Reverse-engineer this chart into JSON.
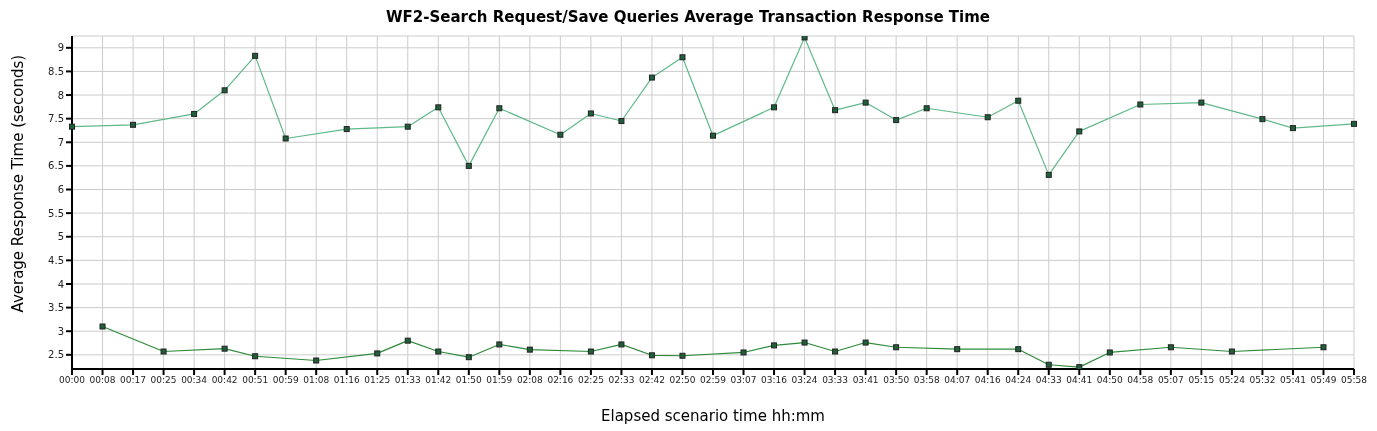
{
  "chart_data": {
    "type": "line",
    "title": "WF2-Search Request/Save Queries Average Transaction Response Time",
    "xlabel": "Elapsed scenario time hh:mm",
    "ylabel": "Average Response Time (seconds)",
    "categories": [
      "00:00",
      "00:08",
      "00:17",
      "00:25",
      "00:34",
      "00:42",
      "00:51",
      "00:59",
      "01:08",
      "01:16",
      "01:25",
      "01:33",
      "01:42",
      "01:50",
      "01:59",
      "02:08",
      "02:16",
      "02:25",
      "02:33",
      "02:42",
      "02:50",
      "02:59",
      "03:07",
      "03:16",
      "03:24",
      "03:33",
      "03:41",
      "03:50",
      "03:58",
      "04:07",
      "04:16",
      "04:24",
      "04:33",
      "04:41",
      "04:50",
      "04:58",
      "05:07",
      "05:15",
      "05:24",
      "05:32",
      "05:41",
      "05:49",
      "05:58"
    ],
    "series": [
      {
        "color": "#5fb98a",
        "values": [
          7.33,
          null,
          7.37,
          null,
          7.6,
          8.1,
          8.83,
          7.08,
          null,
          7.28,
          null,
          7.33,
          7.74,
          6.5,
          7.72,
          null,
          7.16,
          7.61,
          7.45,
          8.37,
          8.8,
          7.14,
          null,
          7.74,
          9.22,
          7.68,
          7.84,
          7.47,
          7.72,
          null,
          7.53,
          7.88,
          6.31,
          7.23,
          null,
          7.8,
          null,
          7.84,
          null,
          7.49,
          7.3,
          null,
          7.39
        ]
      },
      {
        "color": "#2e8b3a",
        "values": [
          null,
          3.1,
          null,
          2.57,
          null,
          2.63,
          2.47,
          null,
          2.38,
          null,
          2.53,
          2.8,
          2.57,
          2.45,
          2.72,
          2.61,
          null,
          2.57,
          2.72,
          2.49,
          2.48,
          null,
          2.55,
          2.7,
          2.76,
          2.57,
          2.76,
          2.66,
          null,
          2.62,
          null,
          2.62,
          2.29,
          2.24,
          2.55,
          null,
          2.66,
          null,
          2.57,
          null,
          null,
          2.66,
          null
        ]
      }
    ],
    "ylim": [
      2.2,
      9.25
    ],
    "yticks": [
      {
        "value": 2.5,
        "label": "2.5"
      },
      {
        "value": 3,
        "label": "3"
      },
      {
        "value": 3.5,
        "label": "3.5"
      },
      {
        "value": 4,
        "label": "4"
      },
      {
        "value": 4.5,
        "label": "4.5"
      },
      {
        "value": 5,
        "label": "5"
      },
      {
        "value": 5.5,
        "label": "5.5"
      },
      {
        "value": 6,
        "label": "6"
      },
      {
        "value": 6.5,
        "label": "6.5"
      },
      {
        "value": 7,
        "label": "7"
      },
      {
        "value": 7.5,
        "label": "7.5"
      },
      {
        "value": 8,
        "label": "8"
      },
      {
        "value": 8.5,
        "label": "8.5"
      },
      {
        "value": 9,
        "label": "9"
      }
    ],
    "grid": true,
    "legend": false,
    "marker": "square",
    "line_style": "solid"
  }
}
